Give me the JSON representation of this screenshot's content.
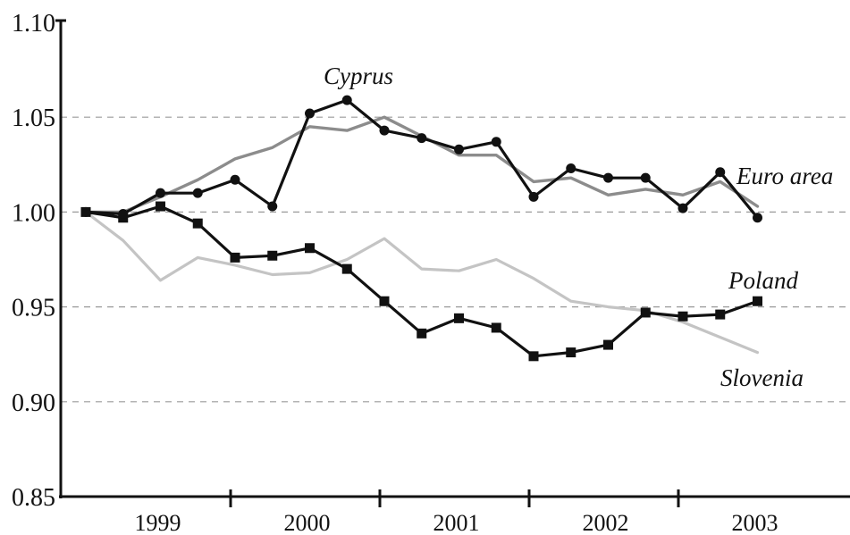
{
  "chart_data": {
    "type": "line",
    "title": "",
    "xlabel": "",
    "ylabel": "",
    "ylim": [
      0.85,
      1.1
    ],
    "yticks": [
      "0.85",
      "0.90",
      "0.95",
      "1.00",
      "1.05",
      "1.10"
    ],
    "xticks": [
      "1999",
      "2000",
      "2001",
      "2002",
      "2003"
    ],
    "grid": "horizontal dashed",
    "legend": "inline labels",
    "x": [
      1998.5,
      1998.75,
      1999.0,
      1999.25,
      1999.5,
      1999.75,
      2000.0,
      2000.25,
      2000.5,
      2000.75,
      2001.0,
      2001.25,
      2001.5,
      2001.75,
      2002.0,
      2002.25,
      2002.5,
      2002.75,
      2003.0
    ],
    "series": [
      {
        "name": "Cyprus",
        "color": "#111111",
        "marker": "circle",
        "values": [
          1.0,
          0.999,
          1.01,
          1.01,
          1.017,
          1.003,
          1.052,
          1.059,
          1.043,
          1.039,
          1.033,
          1.037,
          1.008,
          1.023,
          1.018,
          1.018,
          1.002,
          1.021,
          0.997
        ]
      },
      {
        "name": "Euro area",
        "color": "#8c8c8c",
        "marker": "none",
        "values": [
          1.0,
          1.0,
          1.008,
          1.017,
          1.028,
          1.034,
          1.045,
          1.043,
          1.05,
          1.04,
          1.03,
          1.03,
          1.016,
          1.018,
          1.009,
          1.012,
          1.009,
          1.016,
          1.003
        ]
      },
      {
        "name": "Poland",
        "color": "#111111",
        "marker": "square",
        "values": [
          1.0,
          0.997,
          1.003,
          0.994,
          0.976,
          0.977,
          0.981,
          0.97,
          0.953,
          0.936,
          0.944,
          0.939,
          0.924,
          0.926,
          0.93,
          0.947,
          0.945,
          0.946,
          0.953
        ]
      },
      {
        "name": "Slovenia",
        "color": "#c4c4c4",
        "marker": "none",
        "values": [
          1.0,
          0.985,
          0.964,
          0.976,
          0.972,
          0.967,
          0.968,
          0.975,
          0.986,
          0.97,
          0.969,
          0.975,
          0.965,
          0.953,
          0.95,
          0.948,
          0.942,
          0.934,
          0.926
        ]
      }
    ]
  }
}
